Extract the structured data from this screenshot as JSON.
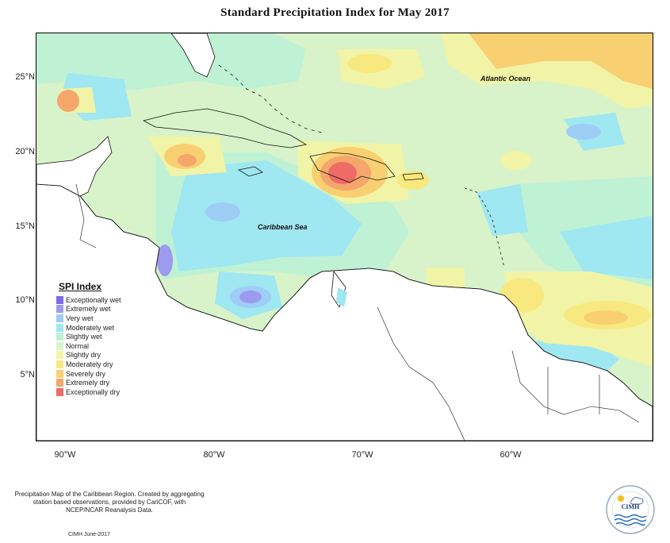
{
  "title": "Standard Precipitation Index for May 2017",
  "map": {
    "axis_y_ticks": [
      "25°N",
      "20°N",
      "15°N",
      "10°N",
      "5°N"
    ],
    "axis_x_ticks": [
      "90°W",
      "80°W",
      "70°W",
      "60°W"
    ],
    "labels": {
      "atlantic": "Atlantic Ocean",
      "caribbean": "Caribbean Sea"
    }
  },
  "legend": {
    "title": "SPI Index",
    "items": [
      {
        "label": "Exceptionally wet",
        "color": "#7b6be8"
      },
      {
        "label": "Extremely wet",
        "color": "#9d9af0"
      },
      {
        "label": "Very wet",
        "color": "#9ecdf6"
      },
      {
        "label": "Moderately wet",
        "color": "#9fe7f1"
      },
      {
        "label": "Slightly wet",
        "color": "#bff1d4"
      },
      {
        "label": "Normal",
        "color": "#d8f3c9"
      },
      {
        "label": "Slightly dry",
        "color": "#f1f4a6"
      },
      {
        "label": "Moderately dry",
        "color": "#f7e97f"
      },
      {
        "label": "Severely dry",
        "color": "#f8d071"
      },
      {
        "label": "Extremely dry",
        "color": "#f5a66b"
      },
      {
        "label": "Exceptionally dry",
        "color": "#ef6b66"
      }
    ]
  },
  "footer": {
    "description": "Precipitation Map of the Caribbean Region. Created by aggregating station based observations, provided by CariCOF, with NCEP/NCAR Reanalysis Data.",
    "credit": "CIMH June-2017"
  },
  "logo": {
    "text": "CIMH"
  }
}
